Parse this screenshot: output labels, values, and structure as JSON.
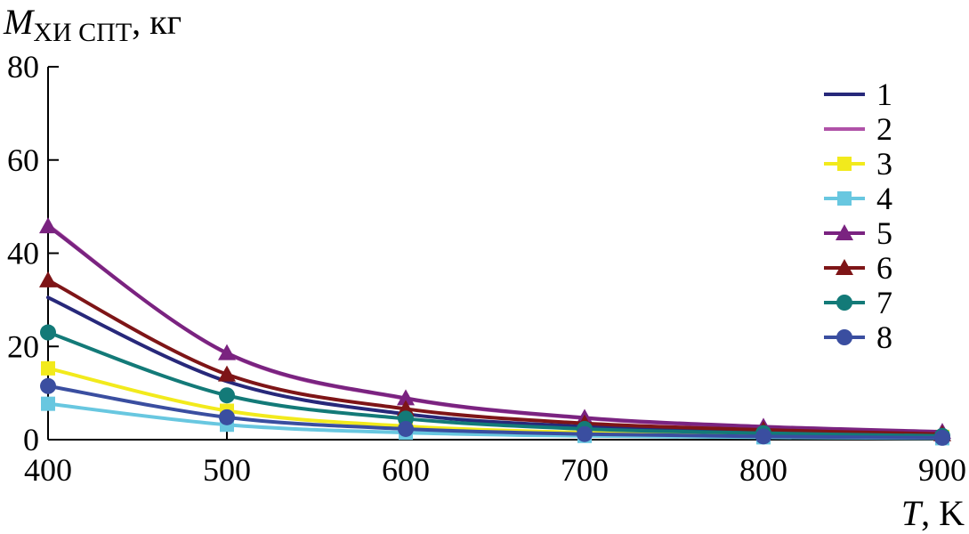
{
  "chart_data": {
    "type": "line",
    "x": [
      400,
      500,
      600,
      700,
      800,
      900
    ],
    "xlim": [
      400,
      900
    ],
    "ylim": [
      0,
      80
    ],
    "xticks": [
      400,
      500,
      600,
      700,
      800,
      900
    ],
    "yticks": [
      0,
      20,
      40,
      60,
      80
    ],
    "ylabel": {
      "symbol": "M",
      "subscript": "ХИ СПТ",
      "unit": ", кг"
    },
    "xlabel": {
      "symbol": "T",
      "unit": ", K"
    },
    "grid": false,
    "legend_position": "right",
    "series": [
      {
        "name": "1",
        "color": "#27287a",
        "marker": "none",
        "values": [
          30.5,
          12.5,
          5.5,
          2.8,
          1.6,
          1.0
        ]
      },
      {
        "name": "2",
        "color": "#b052a8",
        "marker": "none",
        "values": [
          46.0,
          18.5,
          8.8,
          4.6,
          2.7,
          1.6
        ]
      },
      {
        "name": "3",
        "color": "#f2ea1c",
        "marker": "square",
        "values": [
          15.3,
          6.2,
          2.9,
          1.5,
          0.9,
          0.6
        ]
      },
      {
        "name": "4",
        "color": "#68c7e0",
        "marker": "square",
        "values": [
          7.7,
          3.2,
          1.5,
          0.8,
          0.5,
          0.3
        ]
      },
      {
        "name": "5",
        "color": "#7a2380",
        "marker": "triangle",
        "values": [
          45.8,
          18.6,
          8.9,
          4.7,
          2.8,
          1.7
        ]
      },
      {
        "name": "6",
        "color": "#7e1517",
        "marker": "triangle",
        "values": [
          34.2,
          14.0,
          6.6,
          3.5,
          2.1,
          1.2
        ]
      },
      {
        "name": "7",
        "color": "#137a78",
        "marker": "circle",
        "values": [
          23.0,
          9.5,
          4.5,
          2.3,
          1.4,
          0.8
        ]
      },
      {
        "name": "8",
        "color": "#3a4ea0",
        "marker": "circle",
        "values": [
          11.5,
          4.8,
          2.3,
          1.2,
          0.7,
          0.4
        ]
      }
    ]
  }
}
